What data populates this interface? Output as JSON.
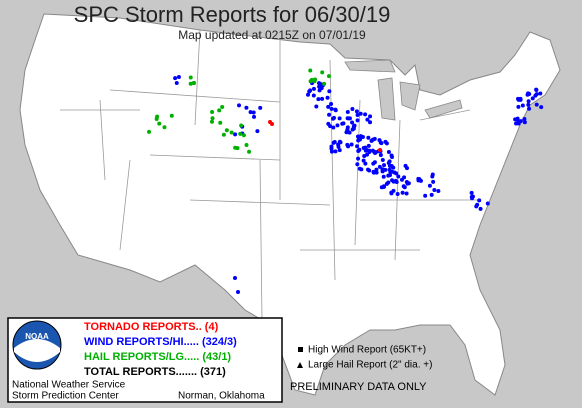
{
  "header": {
    "title": "SPC Storm Reports for 06/30/19",
    "subtitle": "Map updated at 0215Z on 07/01/19"
  },
  "legend": {
    "logo": "NOAA",
    "items": [
      "TORNADO REPORTS.. (4)",
      "WIND REPORTS/HI..... (324/3)",
      "HAIL REPORTS/LG..... (43/1)",
      "TOTAL REPORTS....... (371)"
    ],
    "footer": [
      "National Weather Service",
      "Storm Prediction Center",
      "Norman, Oklahoma"
    ]
  },
  "key": [
    "High Wind Report (65KT+)",
    "Large Hail Report (2\" dia. +)"
  ],
  "notice": "PRELIMINARY DATA ONLY"
}
